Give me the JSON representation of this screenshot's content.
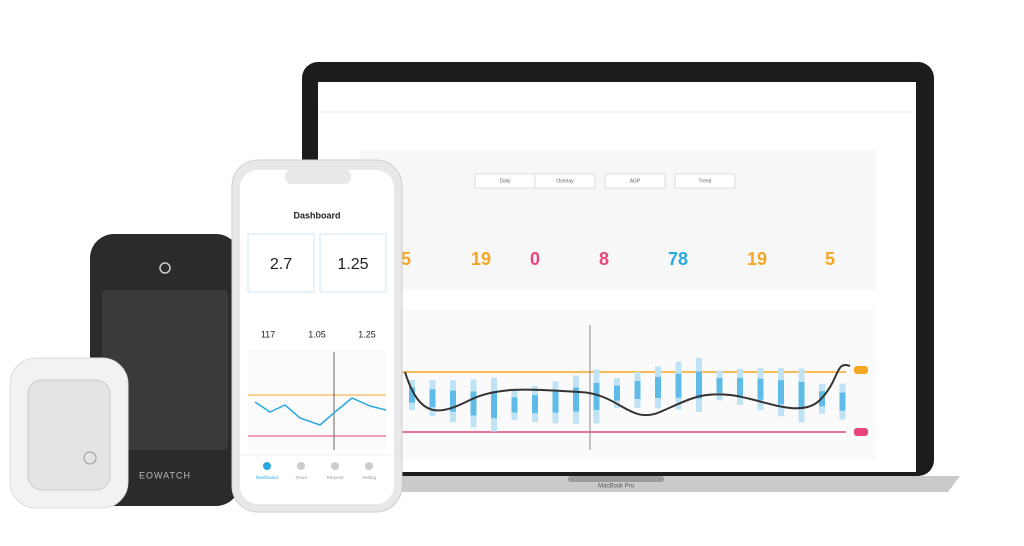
{
  "laptop": {
    "model": "MacBook Pro",
    "tabs": [
      "Daily",
      "Overlay",
      "AGP",
      "Trend"
    ],
    "stats": [
      {
        "value": "5",
        "color": "#f5a623"
      },
      {
        "value": "19",
        "color": "#f5a623"
      },
      {
        "value": "0",
        "color": "#e8457a"
      },
      {
        "value": "8",
        "color": "#e8457a"
      },
      {
        "value": "78",
        "color": "#29a8e0"
      },
      {
        "value": "19",
        "color": "#f5a623"
      },
      {
        "value": "5",
        "color": "#f5a623"
      }
    ]
  },
  "phone": {
    "title": "Dashboard",
    "cards": [
      "2.7",
      "1.25"
    ],
    "readings": [
      "117",
      "1.05",
      "1.25"
    ],
    "nav": [
      "Dashboard",
      "Trend",
      "Request",
      "Setting"
    ]
  },
  "receiver": {
    "brand": "EOWATCH"
  }
}
